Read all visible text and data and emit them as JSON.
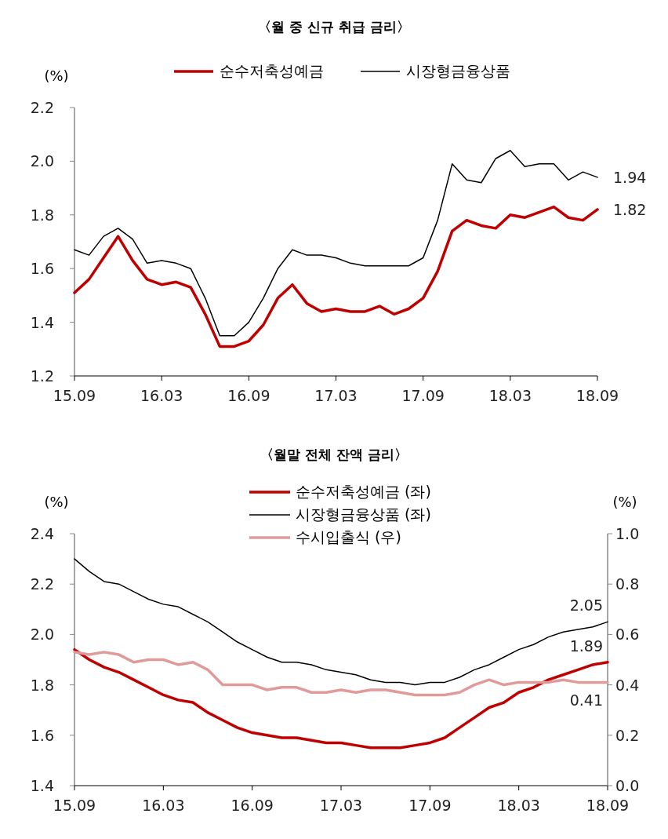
{
  "chart_data": [
    {
      "type": "line",
      "title": "〈월 중 신규 취급 금리〉",
      "ylabel": "(%)",
      "categories": [
        "15.09",
        null,
        null,
        null,
        null,
        null,
        "16.03",
        null,
        null,
        null,
        null,
        null,
        "16.09",
        null,
        null,
        null,
        null,
        null,
        "17.03",
        null,
        null,
        null,
        null,
        null,
        "17.09",
        null,
        null,
        null,
        null,
        null,
        "18.03",
        null,
        null,
        null,
        null,
        null,
        "18.09"
      ],
      "series": [
        {
          "name": "순수저축성예금",
          "color": "#c00000",
          "values": [
            1.51,
            1.56,
            1.64,
            1.72,
            1.63,
            1.56,
            1.54,
            1.55,
            1.53,
            1.43,
            1.31,
            1.31,
            1.33,
            1.39,
            1.49,
            1.54,
            1.47,
            1.44,
            1.45,
            1.44,
            1.44,
            1.46,
            1.43,
            1.45,
            1.49,
            1.59,
            1.74,
            1.78,
            1.76,
            1.75,
            1.8,
            1.79,
            1.81,
            1.83,
            1.79,
            1.78,
            1.82
          ]
        },
        {
          "name": "시장형금융상품",
          "color": "#000000",
          "values": [
            1.67,
            1.65,
            1.72,
            1.75,
            1.71,
            1.62,
            1.63,
            1.62,
            1.6,
            1.49,
            1.35,
            1.35,
            1.4,
            1.49,
            1.6,
            1.67,
            1.65,
            1.65,
            1.64,
            1.62,
            1.61,
            1.61,
            1.61,
            1.61,
            1.64,
            1.78,
            1.99,
            1.93,
            1.92,
            2.01,
            2.04,
            1.98,
            1.99,
            1.99,
            1.93,
            1.96,
            1.94
          ]
        }
      ],
      "ylim": [
        1.2,
        2.2
      ],
      "yticks": [
        {
          "value": 1.2,
          "label": "1.2"
        },
        {
          "value": 1.4,
          "label": "1.4"
        },
        {
          "value": 1.6,
          "label": "1.6"
        },
        {
          "value": 1.8,
          "label": "1.8"
        },
        {
          "value": 2.0,
          "label": "2.0"
        },
        {
          "value": 2.2,
          "label": "2.2"
        }
      ],
      "legend": "top",
      "annotations": [
        {
          "text": "1.94",
          "x": "18.09",
          "y": 1.94
        },
        {
          "text": "1.82",
          "x": "18.09",
          "y": 1.82
        }
      ]
    },
    {
      "type": "line",
      "title": "〈월말 전체 잔액 금리〉",
      "ylabel": "(%)",
      "y2label": "(%)",
      "categories": [
        "15.09",
        null,
        null,
        null,
        null,
        null,
        "16.03",
        null,
        null,
        null,
        null,
        null,
        "16.09",
        null,
        null,
        null,
        null,
        null,
        "17.03",
        null,
        null,
        null,
        null,
        null,
        "17.09",
        null,
        null,
        null,
        null,
        null,
        "18.03",
        null,
        null,
        null,
        null,
        null,
        "18.09"
      ],
      "series": [
        {
          "name": "순수저축성예금 (좌)",
          "color": "#c00000",
          "values": [
            1.94,
            1.9,
            1.87,
            1.85,
            1.82,
            1.79,
            1.76,
            1.74,
            1.73,
            1.69,
            1.66,
            1.63,
            1.61,
            1.6,
            1.59,
            1.59,
            1.58,
            1.57,
            1.57,
            1.56,
            1.55,
            1.55,
            1.55,
            1.56,
            1.57,
            1.59,
            1.63,
            1.67,
            1.71,
            1.73,
            1.77,
            1.79,
            1.82,
            1.84,
            1.86,
            1.88,
            1.89
          ]
        },
        {
          "name": "시장형금융상품 (좌)",
          "color": "#000000",
          "values": [
            2.3,
            2.25,
            2.21,
            2.2,
            2.17,
            2.14,
            2.12,
            2.11,
            2.08,
            2.05,
            2.01,
            1.97,
            1.94,
            1.91,
            1.89,
            1.89,
            1.88,
            1.86,
            1.85,
            1.84,
            1.82,
            1.81,
            1.81,
            1.8,
            1.81,
            1.81,
            1.83,
            1.86,
            1.88,
            1.91,
            1.94,
            1.96,
            1.99,
            2.01,
            2.02,
            2.03,
            2.05
          ]
        },
        {
          "name": "수시입출식 (우)",
          "color": "#e09a9a",
          "axis": "y2",
          "values": [
            0.53,
            0.52,
            0.53,
            0.52,
            0.49,
            0.5,
            0.5,
            0.48,
            0.49,
            0.46,
            0.4,
            0.4,
            0.4,
            0.38,
            0.39,
            0.39,
            0.37,
            0.37,
            0.38,
            0.37,
            0.38,
            0.38,
            0.37,
            0.36,
            0.36,
            0.36,
            0.37,
            0.4,
            0.42,
            0.4,
            0.41,
            0.41,
            0.41,
            0.42,
            0.41,
            0.41,
            0.41
          ]
        }
      ],
      "ylim": [
        1.4,
        2.4
      ],
      "yticks": [
        {
          "value": 1.4,
          "label": "1.4"
        },
        {
          "value": 1.6,
          "label": "1.6"
        },
        {
          "value": 1.8,
          "label": "1.8"
        },
        {
          "value": 2.0,
          "label": "2.0"
        },
        {
          "value": 2.2,
          "label": "2.2"
        },
        {
          "value": 2.4,
          "label": "2.4"
        }
      ],
      "y2lim": [
        0,
        1
      ],
      "y2ticks": [
        {
          "value": 0,
          "label": "0.0"
        },
        {
          "value": 0.2,
          "label": "0.2"
        },
        {
          "value": 0.4,
          "label": "0.4"
        },
        {
          "value": 0.6,
          "label": "0.6"
        },
        {
          "value": 0.8,
          "label": "0.8"
        },
        {
          "value": 1,
          "label": "1.0"
        }
      ],
      "legend": "top",
      "annotations": [
        {
          "text": "2.05",
          "x": "18.09",
          "y": 2.05
        },
        {
          "text": "1.89",
          "x": "18.09",
          "y": 1.89
        },
        {
          "text": "0.41",
          "x": "18.09",
          "y": 1.81
        }
      ]
    }
  ]
}
